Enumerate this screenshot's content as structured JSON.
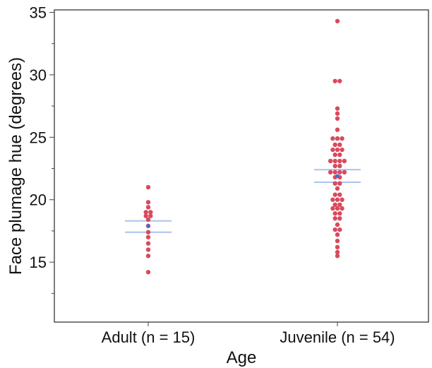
{
  "chart_data": {
    "type": "scatter",
    "subtype": "dot-plot-with-mean-ci",
    "title": "",
    "xlabel": "Age",
    "ylabel": "Face plumage hue (degrees)",
    "ylim": [
      10.2,
      35.2
    ],
    "yticks": [
      15,
      20,
      25,
      30,
      35
    ],
    "ytick_labels": [
      "15",
      "20",
      "25",
      "30",
      "35"
    ],
    "grid": false,
    "legend": "none",
    "categories": [
      "Adult (n = 15)",
      "Juvenile (n = 54)"
    ],
    "series": [
      {
        "category": "Adult (n = 15)",
        "points": [
          {
            "y": 21.0,
            "slot": 0
          },
          {
            "y": 19.8,
            "slot": 0
          },
          {
            "y": 19.4,
            "slot": 0
          },
          {
            "y": 19.0,
            "slot": -1
          },
          {
            "y": 19.0,
            "slot": 1
          },
          {
            "y": 18.7,
            "slot": -1
          },
          {
            "y": 18.7,
            "slot": 1
          },
          {
            "y": 18.4,
            "slot": 0
          },
          {
            "y": 17.9,
            "slot": 0
          },
          {
            "y": 17.4,
            "slot": 0
          },
          {
            "y": 17.0,
            "slot": 0
          },
          {
            "y": 16.5,
            "slot": 0
          },
          {
            "y": 16.0,
            "slot": 0
          },
          {
            "y": 15.5,
            "slot": 0
          },
          {
            "y": 14.2,
            "slot": 0
          }
        ],
        "mean": 17.9,
        "ci": [
          17.4,
          18.3
        ]
      },
      {
        "category": "Juvenile (n = 54)",
        "points": [
          {
            "y": 34.3,
            "slot": 0
          },
          {
            "y": 29.5,
            "slot": -1
          },
          {
            "y": 29.5,
            "slot": 1
          },
          {
            "y": 27.3,
            "slot": 0
          },
          {
            "y": 26.9,
            "slot": 0
          },
          {
            "y": 26.5,
            "slot": 0
          },
          {
            "y": 25.6,
            "slot": 0
          },
          {
            "y": 24.9,
            "slot": -2
          },
          {
            "y": 24.9,
            "slot": 0
          },
          {
            "y": 24.9,
            "slot": 2
          },
          {
            "y": 24.4,
            "slot": -1
          },
          {
            "y": 24.4,
            "slot": 1
          },
          {
            "y": 24.0,
            "slot": -2
          },
          {
            "y": 24.0,
            "slot": 0
          },
          {
            "y": 24.0,
            "slot": 2
          },
          {
            "y": 23.6,
            "slot": -1
          },
          {
            "y": 23.6,
            "slot": 1
          },
          {
            "y": 23.1,
            "slot": -3
          },
          {
            "y": 23.1,
            "slot": -1
          },
          {
            "y": 23.1,
            "slot": 1
          },
          {
            "y": 23.1,
            "slot": 3
          },
          {
            "y": 22.7,
            "slot": -1
          },
          {
            "y": 22.7,
            "slot": 1
          },
          {
            "y": 22.2,
            "slot": -3
          },
          {
            "y": 22.2,
            "slot": -1
          },
          {
            "y": 22.2,
            "slot": 1
          },
          {
            "y": 22.2,
            "slot": 3
          },
          {
            "y": 21.8,
            "slot": -1
          },
          {
            "y": 21.8,
            "slot": 1
          },
          {
            "y": 21.3,
            "slot": -1
          },
          {
            "y": 21.3,
            "slot": 1
          },
          {
            "y": 20.9,
            "slot": 0
          },
          {
            "y": 20.4,
            "slot": -1
          },
          {
            "y": 20.4,
            "slot": 1
          },
          {
            "y": 20.0,
            "slot": -2
          },
          {
            "y": 20.0,
            "slot": 0
          },
          {
            "y": 20.0,
            "slot": 2
          },
          {
            "y": 19.6,
            "slot": -1
          },
          {
            "y": 19.6,
            "slot": 1
          },
          {
            "y": 19.3,
            "slot": -2
          },
          {
            "y": 19.3,
            "slot": 0
          },
          {
            "y": 19.3,
            "slot": 2
          },
          {
            "y": 18.9,
            "slot": -1
          },
          {
            "y": 18.9,
            "slot": 1
          },
          {
            "y": 18.5,
            "slot": -1
          },
          {
            "y": 18.5,
            "slot": 1
          },
          {
            "y": 18.0,
            "slot": 0
          },
          {
            "y": 17.6,
            "slot": -1
          },
          {
            "y": 17.6,
            "slot": 1
          },
          {
            "y": 17.2,
            "slot": 0
          },
          {
            "y": 16.7,
            "slot": 0
          },
          {
            "y": 16.2,
            "slot": 0
          },
          {
            "y": 15.8,
            "slot": 0
          },
          {
            "y": 15.5,
            "slot": 0
          }
        ],
        "mean": 21.9,
        "ci": [
          21.4,
          22.4
        ]
      }
    ],
    "colors": {
      "points": "#d94a5c",
      "ci_lines": "#a9c3ee",
      "mean_marker": "#3d6fd0",
      "frame": "#444444"
    }
  }
}
